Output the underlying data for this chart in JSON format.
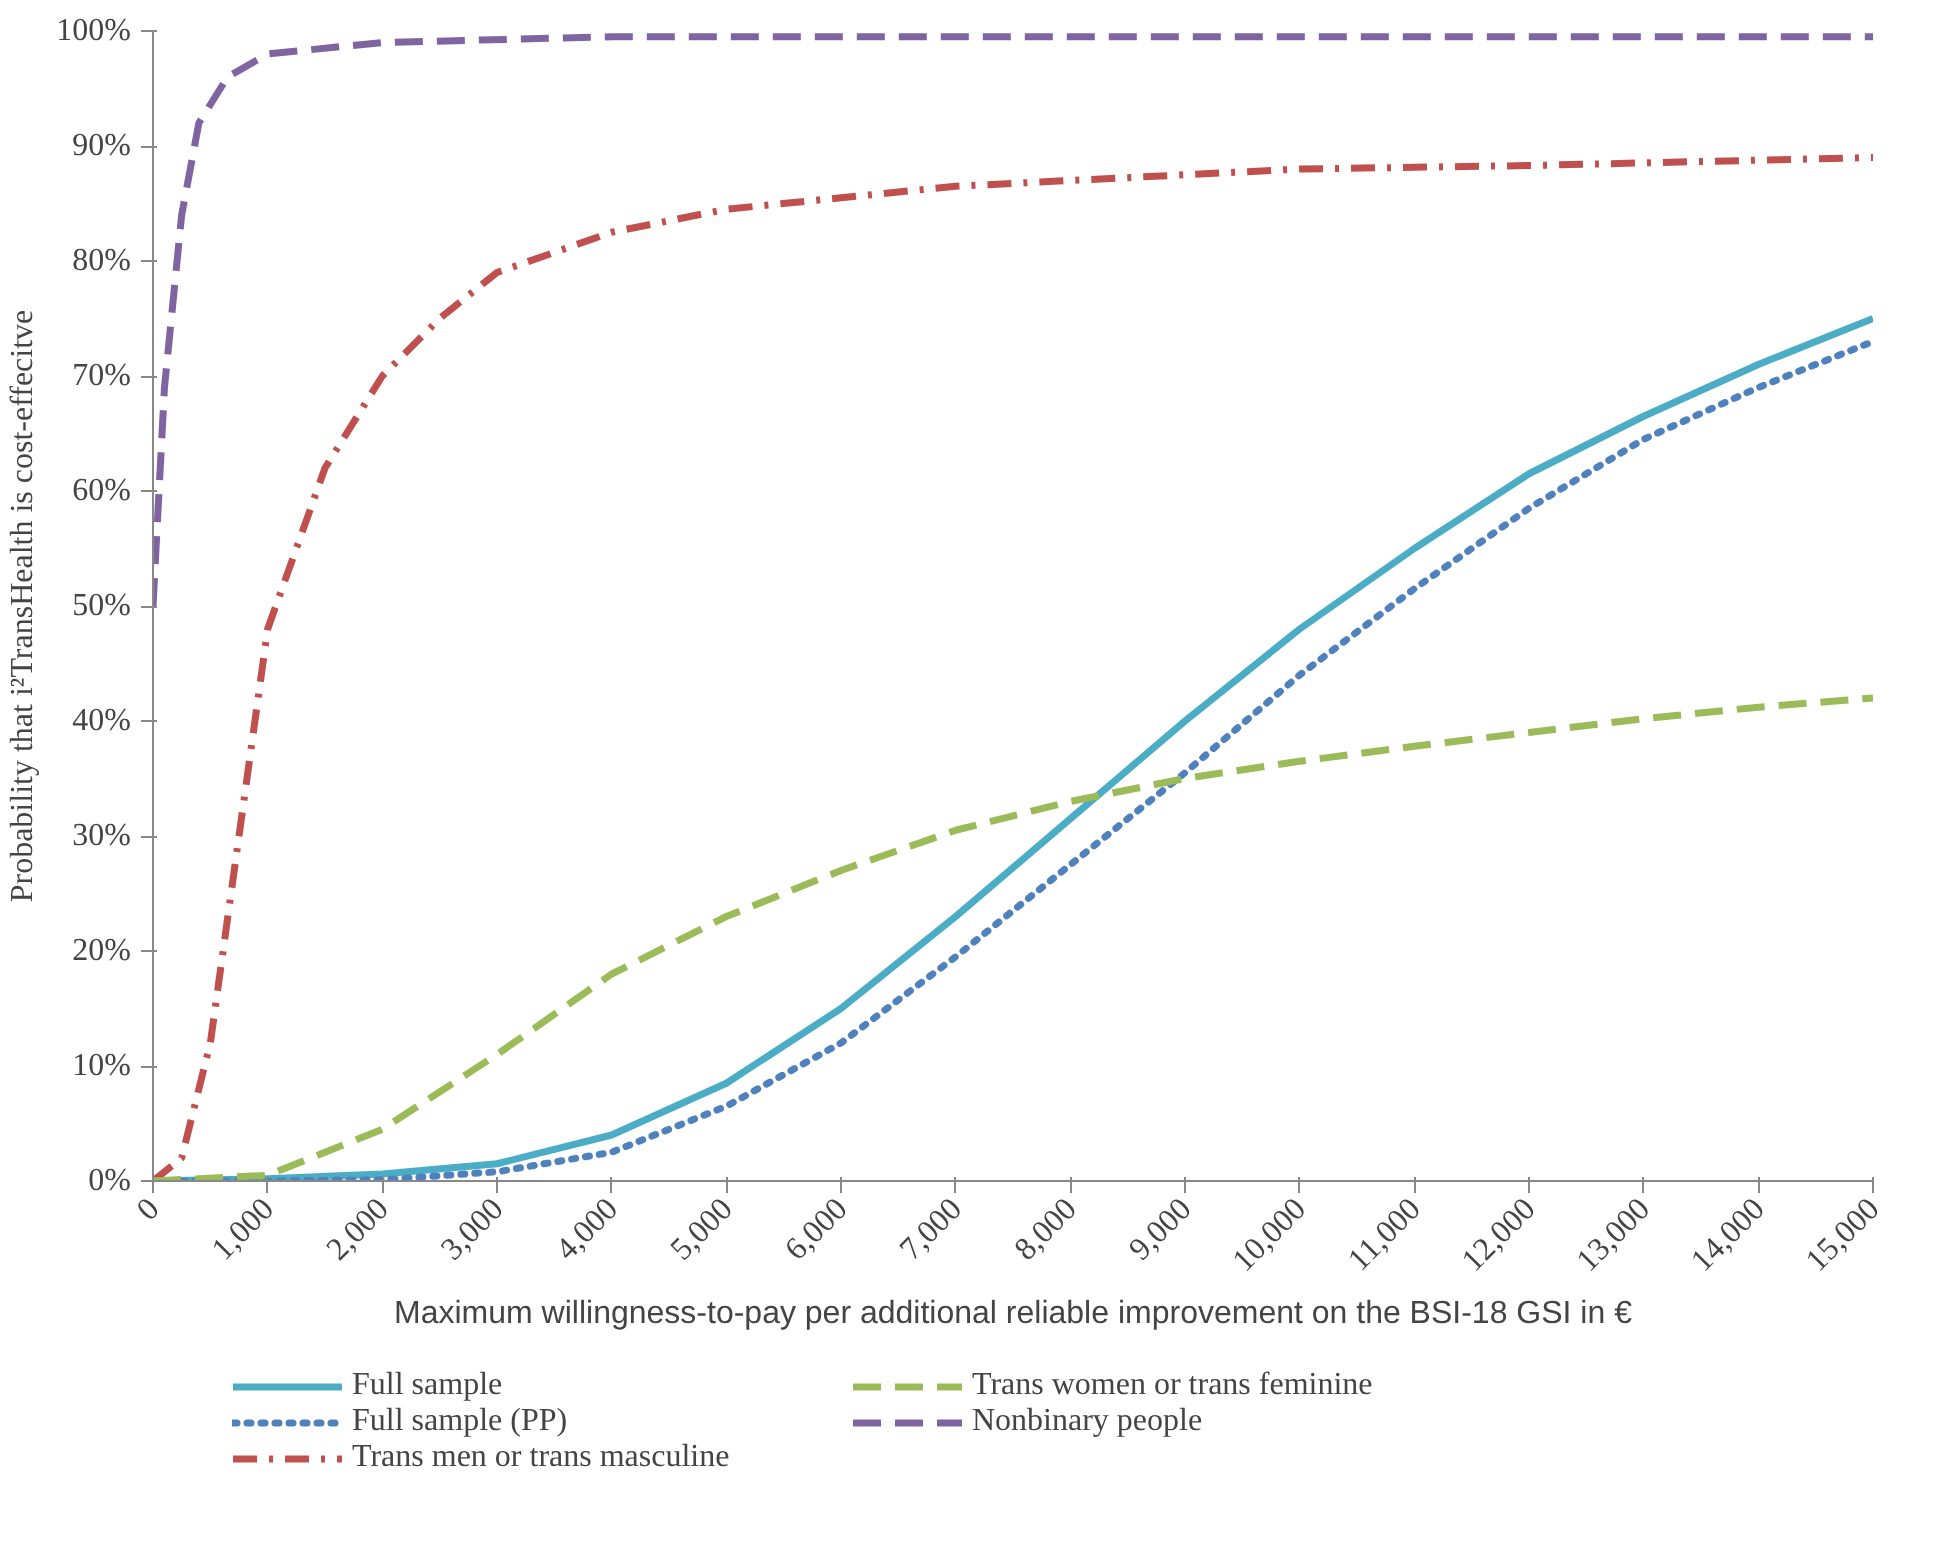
{
  "chart_data": {
    "type": "line",
    "ylabel": "Probability that i²TransHealth is cost-effecitve",
    "xlabel": "Maximum willingness-to-pay per additional reliable improvement on the BSI-18 GSI in €",
    "xlim": [
      0,
      15000
    ],
    "ylim": [
      0,
      1
    ],
    "xticks": [
      {
        "value": 0,
        "label": "0"
      },
      {
        "value": 1000,
        "label": "1,000"
      },
      {
        "value": 2000,
        "label": "2,000"
      },
      {
        "value": 3000,
        "label": "3,000"
      },
      {
        "value": 4000,
        "label": "4,000"
      },
      {
        "value": 5000,
        "label": "5,000"
      },
      {
        "value": 6000,
        "label": "6,000"
      },
      {
        "value": 7000,
        "label": "7,000"
      },
      {
        "value": 8000,
        "label": "8,000"
      },
      {
        "value": 9000,
        "label": "9,000"
      },
      {
        "value": 10000,
        "label": "10,000"
      },
      {
        "value": 11000,
        "label": "11,000"
      },
      {
        "value": 12000,
        "label": "12,000"
      },
      {
        "value": 13000,
        "label": "13,000"
      },
      {
        "value": 14000,
        "label": "14,000"
      },
      {
        "value": 15000,
        "label": "15,000"
      }
    ],
    "yticks": [
      {
        "value": 0,
        "label": "0%"
      },
      {
        "value": 0.1,
        "label": "10%"
      },
      {
        "value": 0.2,
        "label": "20%"
      },
      {
        "value": 0.3,
        "label": "30%"
      },
      {
        "value": 0.4,
        "label": "40%"
      },
      {
        "value": 0.5,
        "label": "50%"
      },
      {
        "value": 0.6,
        "label": "60%"
      },
      {
        "value": 0.7,
        "label": "70%"
      },
      {
        "value": 0.8,
        "label": "80%"
      },
      {
        "value": 0.9,
        "label": "90%"
      },
      {
        "value": 1,
        "label": "100%"
      }
    ],
    "grid": false,
    "legend": "bottom",
    "marker": "none",
    "series": [
      {
        "name": "Full sample",
        "color": "#4bacc6",
        "line_style": "solid",
        "x": [
          0,
          1000,
          2000,
          3000,
          4000,
          5000,
          6000,
          7000,
          8000,
          9000,
          10000,
          11000,
          12000,
          13000,
          14000,
          15000
        ],
        "values": [
          0,
          0.002,
          0.006,
          0.015,
          0.04,
          0.085,
          0.15,
          0.23,
          0.315,
          0.4,
          0.48,
          0.55,
          0.615,
          0.665,
          0.71,
          0.75
        ]
      },
      {
        "name": "Full sample (PP)",
        "color": "#4f81bd",
        "line_style": "dotted",
        "x": [
          0,
          1000,
          2000,
          3000,
          4000,
          5000,
          6000,
          7000,
          8000,
          9000,
          10000,
          11000,
          12000,
          13000,
          14000,
          15000
        ],
        "values": [
          0,
          0,
          0.001,
          0.008,
          0.025,
          0.065,
          0.12,
          0.195,
          0.275,
          0.355,
          0.44,
          0.515,
          0.585,
          0.645,
          0.69,
          0.73
        ]
      },
      {
        "name": "Trans men or trans masculine",
        "color": "#c0504d",
        "line_style": "dashdot",
        "x": [
          0,
          250,
          500,
          750,
          1000,
          1500,
          2000,
          2500,
          3000,
          4000,
          5000,
          6000,
          7000,
          8000,
          9000,
          10000,
          12000,
          15000
        ],
        "values": [
          0,
          0.02,
          0.12,
          0.3,
          0.48,
          0.62,
          0.7,
          0.75,
          0.79,
          0.825,
          0.845,
          0.855,
          0.865,
          0.87,
          0.875,
          0.88,
          0.883,
          0.89
        ]
      },
      {
        "name": "Trans women or trans feminine",
        "color": "#9bbb59",
        "line_style": "dashed",
        "x": [
          0,
          1000,
          2000,
          3000,
          4000,
          5000,
          6000,
          7000,
          8000,
          9000,
          10000,
          11000,
          12000,
          13000,
          14000,
          15000
        ],
        "values": [
          0,
          0.005,
          0.045,
          0.11,
          0.18,
          0.23,
          0.27,
          0.305,
          0.33,
          0.35,
          0.365,
          0.378,
          0.39,
          0.402,
          0.412,
          0.42
        ]
      },
      {
        "name": "Nonbinary people",
        "color": "#8064a2",
        "line_style": "dashed",
        "x": [
          0,
          100,
          250,
          400,
          650,
          1000,
          2000,
          4000,
          8000,
          15000
        ],
        "values": [
          0.5,
          0.69,
          0.84,
          0.92,
          0.96,
          0.98,
          0.99,
          0.995,
          0.995,
          0.995
        ]
      }
    ]
  }
}
